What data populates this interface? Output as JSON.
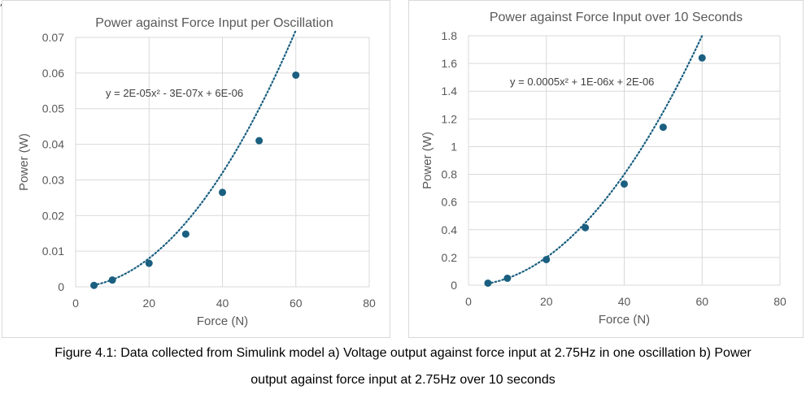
{
  "chart_data": [
    {
      "type": "scatter",
      "title": "Power against Force Input per Oscillation",
      "xlabel": "Force (N)",
      "ylabel": "Power (W)",
      "xlim": [
        0,
        80
      ],
      "ylim": [
        0,
        0.07
      ],
      "xticks": [
        "0",
        "20",
        "40",
        "60",
        "80"
      ],
      "yticks": [
        "0",
        "0.01",
        "0.02",
        "0.03",
        "0.04",
        "0.05",
        "0.06",
        "0.07"
      ],
      "grid": true,
      "series": [
        {
          "x": [
            5,
            10,
            20,
            30,
            40,
            50,
            60
          ],
          "y": [
            0.0004,
            0.0019,
            0.0066,
            0.0148,
            0.0265,
            0.041,
            0.0594
          ]
        }
      ],
      "trendline": {
        "type": "polynomial",
        "coefficients": [
          2e-05,
          -3e-07,
          6e-06
        ],
        "equation": "y = 2E-05x² - 3E-07x + 6E-06"
      },
      "color": "#1a5f80"
    },
    {
      "type": "scatter",
      "title": "Power against Force Input over 10 Seconds",
      "xlabel": "Force (N)",
      "ylabel": "Power (W)",
      "xlim": [
        0,
        80
      ],
      "ylim": [
        0,
        1.8
      ],
      "xticks": [
        "0",
        "20",
        "40",
        "60",
        "80"
      ],
      "yticks": [
        "0",
        "0.2",
        "0.4",
        "0.6",
        "0.8",
        "1",
        "1.2",
        "1.4",
        "1.6",
        "1.8"
      ],
      "grid": true,
      "series": [
        {
          "x": [
            5,
            10,
            20,
            30,
            40,
            50,
            60
          ],
          "y": [
            0.015,
            0.05,
            0.185,
            0.415,
            0.73,
            1.14,
            1.64
          ]
        }
      ],
      "trendline": {
        "type": "polynomial",
        "coefficients": [
          0.0005,
          1e-06,
          2e-06
        ],
        "equation": "y = 0.0005x² + 1E-06x + 2E-06"
      },
      "color": "#1a5f80"
    }
  ],
  "caption": {
    "line1": "Figure 4.1: Data collected from Simulink model a) Voltage output against force input at 2.75Hz in one oscillation b) Power",
    "line2": "output against force input at 2.75Hz over 10 seconds"
  }
}
